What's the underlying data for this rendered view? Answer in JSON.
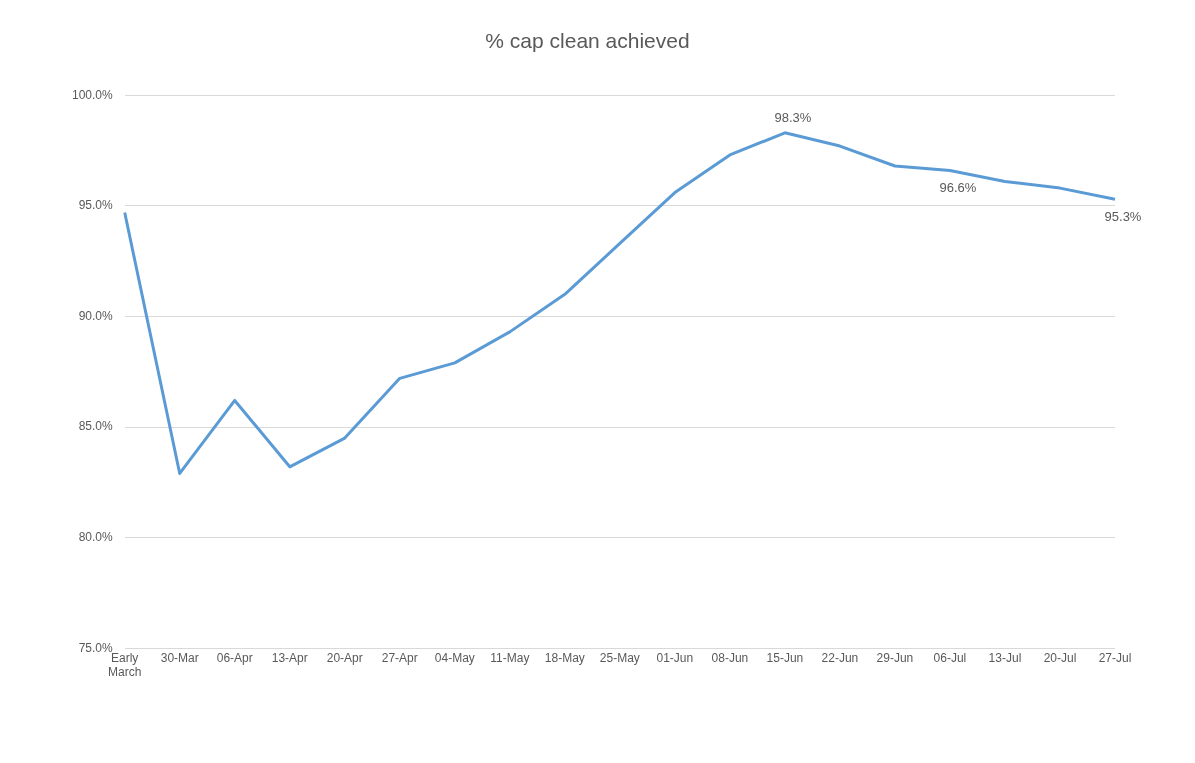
{
  "chart_data": {
    "type": "line",
    "title": "% cap clean achieved",
    "categories": [
      "Early March",
      "30-Mar",
      "06-Apr",
      "13-Apr",
      "20-Apr",
      "27-Apr",
      "04-May",
      "11-May",
      "18-May",
      "25-May",
      "01-Jun",
      "08-Jun",
      "15-Jun",
      "22-Jun",
      "29-Jun",
      "06-Jul",
      "13-Jul",
      "20-Jul",
      "27-Jul"
    ],
    "values": [
      94.7,
      82.9,
      86.2,
      83.2,
      84.5,
      87.2,
      87.9,
      89.3,
      91.0,
      93.3,
      95.6,
      97.3,
      98.3,
      97.7,
      96.8,
      96.6,
      96.1,
      95.8,
      95.3
    ],
    "value_labels": [
      null,
      null,
      null,
      null,
      null,
      null,
      null,
      null,
      null,
      null,
      null,
      null,
      "98.3%",
      null,
      null,
      "96.6%",
      null,
      null,
      "95.3%"
    ],
    "color": "#5b9bd5",
    "ylim": [
      75,
      100
    ],
    "yticks": [
      {
        "value": 75,
        "label": "75.0%"
      },
      {
        "value": 80,
        "label": "80.0%"
      },
      {
        "value": 85,
        "label": "85.0%"
      },
      {
        "value": 90,
        "label": "90.0%"
      },
      {
        "value": 95,
        "label": "95.0%"
      },
      {
        "value": 100,
        "label": "100.0%"
      }
    ],
    "grid": "y",
    "legend": false,
    "marker": "none",
    "line_style": "solid"
  }
}
